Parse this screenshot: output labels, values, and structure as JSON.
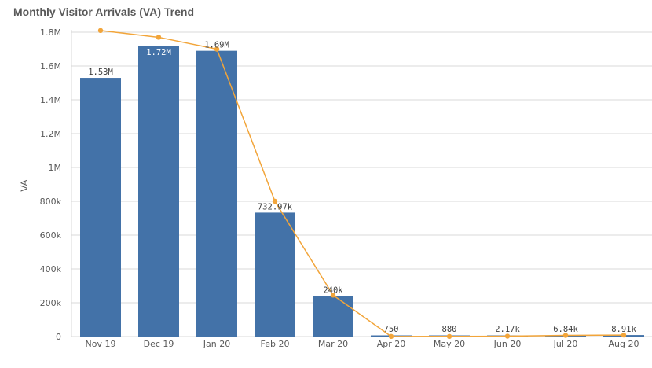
{
  "chart_data": {
    "type": "bar",
    "title": "Monthly Visitor Arrivals (VA) Trend",
    "xlabel": "",
    "ylabel": "VA",
    "categories": [
      "Nov 19",
      "Dec 19",
      "Jan 20",
      "Feb 20",
      "Mar 20",
      "Apr 20",
      "May 20",
      "Jun 20",
      "Jul 20",
      "Aug 20"
    ],
    "series": [
      {
        "type": "bar",
        "values": [
          1530000,
          1720000,
          1690000,
          732970,
          240000,
          750,
          880,
          2170,
          6840,
          8910
        ],
        "data_labels": [
          "1.53M",
          "1.72M",
          "1.69M",
          "732.97k",
          "240k",
          "750",
          "880",
          "2.17k",
          "6.84k",
          "8.91k"
        ],
        "color": "#4372a8"
      },
      {
        "type": "line",
        "values": [
          1810000,
          1770000,
          1700000,
          800000,
          245000,
          750,
          880,
          2170,
          6840,
          8910
        ],
        "color": "#f2a53a"
      }
    ],
    "ylim": [
      0,
      1800000
    ],
    "yticks": [
      0,
      200000,
      400000,
      600000,
      800000,
      1000000,
      1200000,
      1400000,
      1600000,
      1800000
    ],
    "ytick_labels": [
      "0",
      "200k",
      "400k",
      "600k",
      "800k",
      "1M",
      "1.2M",
      "1.4M",
      "1.6M",
      "1.8M"
    ],
    "grid": true,
    "legend": "none"
  }
}
